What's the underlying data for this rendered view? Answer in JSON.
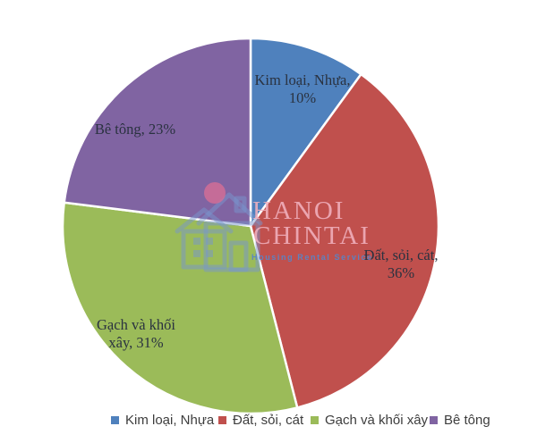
{
  "chart_data": {
    "type": "pie",
    "title": "",
    "categories": [
      "Kim loại, Nhựa",
      "Đất, sỏi, cát",
      "Gạch và khối xây",
      "Bê tông"
    ],
    "values": [
      10,
      36,
      31,
      23
    ],
    "unit": "%",
    "colors": [
      "#4F81BD",
      "#C0504D",
      "#9BBB59",
      "#8064A2"
    ],
    "start_angle_deg": -90,
    "direction": "clockwise",
    "legend_position": "bottom",
    "slice_labels": [
      {
        "line1": "Kim loại, Nhựa,",
        "line2": "10%"
      },
      {
        "line1": "Đất, sỏi, cát,",
        "line2": "36%"
      },
      {
        "line1": "Gạch và khối",
        "line2": "xây, 31%"
      },
      {
        "line1": "Bê tông, 23%"
      }
    ]
  },
  "legend": {
    "items": [
      {
        "label": "Kim loại, Nhựa",
        "color": "#4F81BD"
      },
      {
        "label": "Đất, sỏi, cát",
        "color": "#C0504D"
      },
      {
        "label": "Gạch và khối xây",
        "color": "#9BBB59"
      },
      {
        "label": "Bê tông",
        "color": "#8064A2"
      }
    ]
  },
  "watermark": {
    "brand_line1": "HANOI",
    "brand_line2": "CHINTAI",
    "tagline": "Housing Rental Service"
  }
}
